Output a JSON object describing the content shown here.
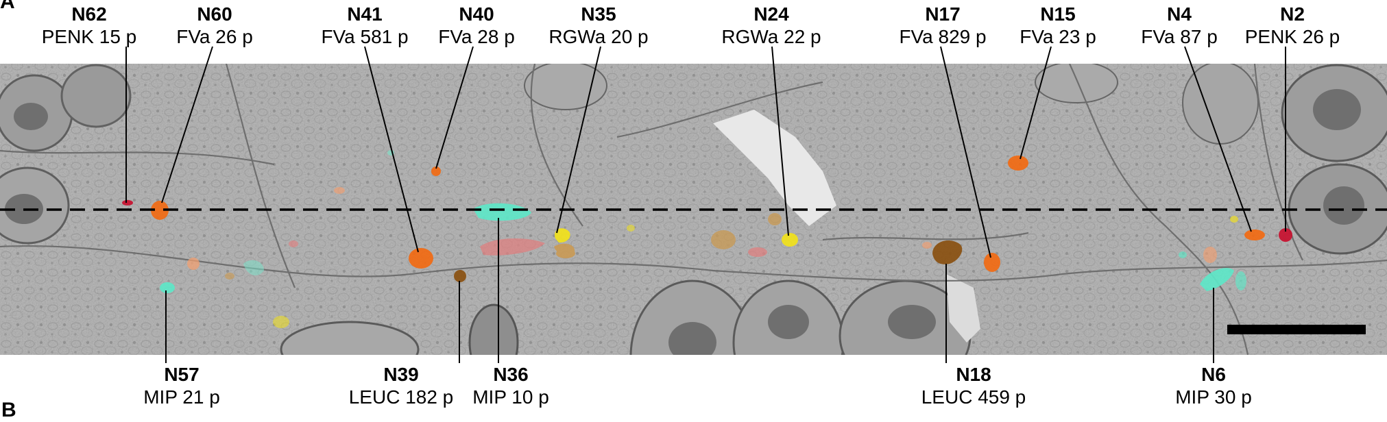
{
  "panels": {
    "a": "A",
    "b": "B"
  },
  "colors": {
    "fva": "#f26a12",
    "penk": "#c8102e",
    "rgwa": "#f2e21a",
    "mip": "#5ee8c8",
    "leuc": "#8a5010",
    "tan": "#c99a55",
    "pink": "#e08080",
    "scalebar": "#000000",
    "background_em": "#b9b9b9"
  },
  "top_labels": [
    {
      "id": "N62",
      "desc": "PENK 15 p"
    },
    {
      "id": "N60",
      "desc": "FVa 26 p"
    },
    {
      "id": "N41",
      "desc": "FVa 581 p"
    },
    {
      "id": "N40",
      "desc": "FVa 28 p"
    },
    {
      "id": "N35",
      "desc": "RGWa 20 p"
    },
    {
      "id": "N24",
      "desc": "RGWa 22 p"
    },
    {
      "id": "N17",
      "desc": "FVa 829 p"
    },
    {
      "id": "N15",
      "desc": "FVa 23 p"
    },
    {
      "id": "N4",
      "desc": "FVa 87 p"
    },
    {
      "id": "N2",
      "desc": "PENK 26 p"
    }
  ],
  "bottom_labels": [
    {
      "id": "N57",
      "desc": "MIP 21 p"
    },
    {
      "id": "N39",
      "desc": "LEUC 182 p"
    },
    {
      "id": "N36",
      "desc": "MIP 10 p"
    },
    {
      "id": "N18",
      "desc": "LEUC 459 p"
    },
    {
      "id": "N6",
      "desc": "MIP 30 p"
    }
  ]
}
